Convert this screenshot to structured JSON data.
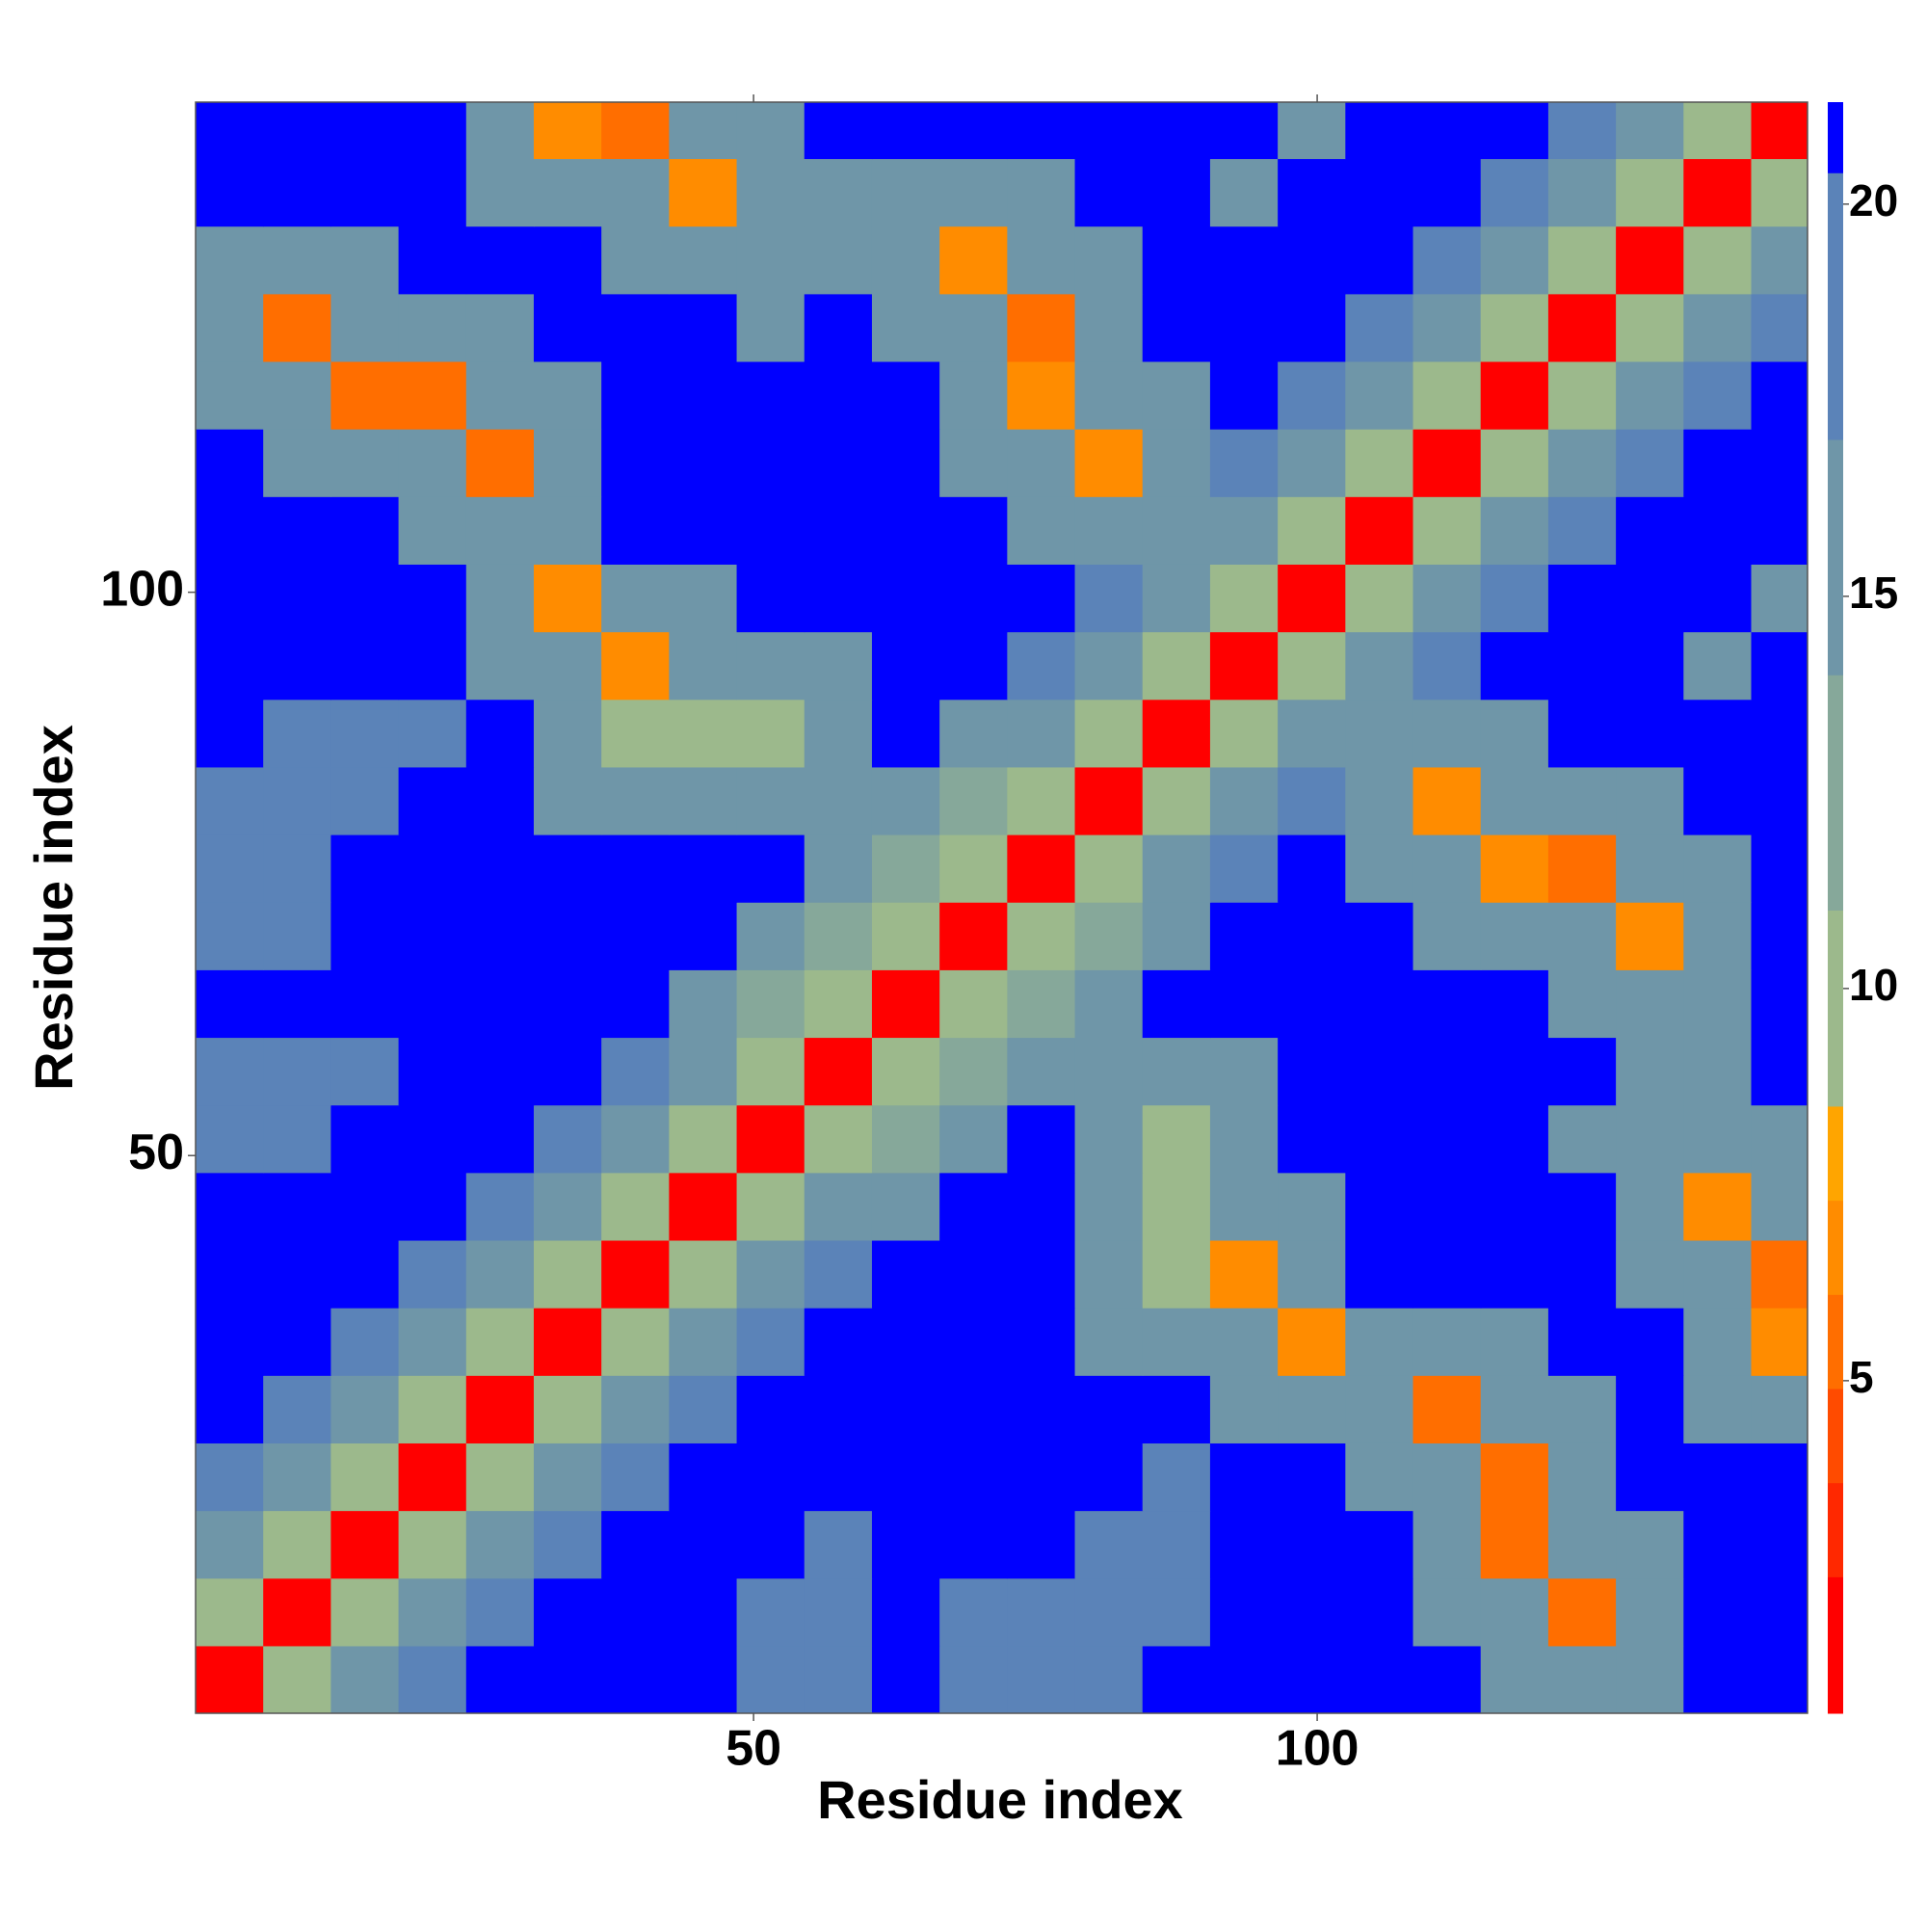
{
  "chart_data": {
    "type": "heatmap",
    "xlabel": "Residue index",
    "ylabel": "Residue index",
    "bins": [
      0.5,
      6.5,
      12.5,
      18.5,
      24.5,
      30.5,
      36.5,
      42.5,
      48.5,
      54.5,
      60.5,
      66.5,
      72.5,
      78.5,
      84.5,
      90.5,
      96.5,
      102.5,
      108.5,
      114.5,
      120.5,
      126.5,
      132.5,
      138.5,
      144.5
    ],
    "xlim": [
      0.5,
      143.5
    ],
    "ylim": [
      0.5,
      143.5
    ],
    "xticks": [
      50,
      100
    ],
    "yticks": [
      50,
      100
    ],
    "values": [
      [
        2,
        9,
        14,
        19,
        21,
        21,
        21,
        21,
        17,
        17,
        21,
        17,
        17,
        17,
        21,
        21,
        21,
        21,
        21,
        14,
        14,
        14,
        21,
        21
      ],
      [
        9,
        2,
        9,
        14,
        19,
        21,
        21,
        21,
        17,
        17,
        21,
        17,
        17,
        17,
        17,
        21,
        21,
        21,
        14,
        14,
        6,
        14,
        21,
        21
      ],
      [
        14,
        9,
        2,
        9,
        14,
        19,
        21,
        21,
        21,
        17,
        21,
        21,
        21,
        17,
        17,
        21,
        21,
        21,
        14,
        6,
        14,
        14,
        21,
        21
      ],
      [
        19,
        14,
        9,
        2,
        9,
        14,
        19,
        21,
        21,
        21,
        21,
        21,
        21,
        21,
        17,
        21,
        21,
        14,
        14,
        6,
        14,
        21,
        21,
        21
      ],
      [
        21,
        19,
        14,
        9,
        2,
        9,
        14,
        19,
        21,
        21,
        21,
        21,
        21,
        21,
        21,
        14,
        14,
        14,
        6,
        14,
        14,
        21,
        14,
        14
      ],
      [
        21,
        21,
        19,
        14,
        9,
        2,
        9,
        14,
        19,
        21,
        21,
        21,
        21,
        14,
        14,
        14,
        7,
        14,
        14,
        14,
        21,
        21,
        14,
        7
      ],
      [
        21,
        21,
        21,
        19,
        14,
        9,
        2,
        9,
        14,
        19,
        21,
        21,
        21,
        14,
        9,
        7,
        14,
        21,
        21,
        21,
        21,
        14,
        14,
        6
      ],
      [
        21,
        21,
        21,
        21,
        19,
        14,
        9,
        2,
        9,
        14,
        15,
        21,
        21,
        14,
        9,
        14,
        14,
        21,
        21,
        21,
        21,
        14,
        7,
        14
      ],
      [
        17,
        17,
        21,
        21,
        21,
        19,
        14,
        9,
        2,
        9,
        11,
        15,
        21,
        14,
        10,
        14,
        21,
        21,
        21,
        21,
        16,
        14,
        14,
        14
      ],
      [
        17,
        17,
        17,
        21,
        21,
        21,
        19,
        14,
        9,
        2,
        9,
        11,
        15,
        14,
        14,
        14,
        21,
        21,
        21,
        21,
        21,
        16,
        16,
        21
      ],
      [
        21,
        21,
        21,
        21,
        21,
        21,
        21,
        15,
        11,
        9,
        2,
        9,
        11,
        15,
        21,
        21,
        21,
        21,
        21,
        21,
        14,
        14,
        14,
        21
      ],
      [
        17,
        17,
        21,
        21,
        21,
        21,
        21,
        21,
        15,
        11,
        9,
        2,
        9,
        11,
        15,
        21,
        21,
        21,
        14,
        14,
        14,
        7,
        14,
        21
      ],
      [
        17,
        17,
        21,
        21,
        21,
        21,
        21,
        21,
        21,
        15,
        11,
        9,
        2,
        9,
        14,
        19,
        21,
        14,
        14,
        7,
        6,
        14,
        14,
        21
      ],
      [
        17,
        17,
        17,
        21,
        21,
        14,
        14,
        14,
        14,
        14,
        15,
        11,
        9,
        2,
        9,
        14,
        19,
        14,
        7,
        14,
        14,
        14,
        21,
        21
      ],
      [
        21,
        17,
        17,
        17,
        21,
        14,
        9,
        9,
        10,
        14,
        21,
        15,
        14,
        9,
        2,
        9,
        14,
        14,
        14,
        14,
        21,
        21,
        21,
        21
      ],
      [
        21,
        21,
        21,
        21,
        14,
        14,
        7,
        14,
        14,
        14,
        21,
        21,
        19,
        14,
        9,
        2,
        9,
        14,
        19,
        21,
        21,
        21,
        16,
        21
      ],
      [
        21,
        21,
        21,
        21,
        14,
        7,
        14,
        14,
        21,
        21,
        21,
        21,
        21,
        19,
        14,
        9,
        2,
        9,
        14,
        19,
        21,
        21,
        21,
        16
      ],
      [
        21,
        21,
        21,
        14,
        14,
        14,
        21,
        21,
        21,
        21,
        21,
        21,
        14,
        14,
        14,
        14,
        9,
        2,
        9,
        14,
        19,
        21,
        21,
        21
      ],
      [
        21,
        14,
        14,
        14,
        6,
        14,
        21,
        21,
        21,
        21,
        21,
        14,
        14,
        7,
        14,
        19,
        14,
        9,
        2,
        9,
        14,
        19,
        21,
        21
      ],
      [
        14,
        14,
        6,
        6,
        14,
        14,
        21,
        21,
        21,
        21,
        21,
        14,
        7,
        14,
        14,
        21,
        19,
        14,
        9,
        2,
        9,
        14,
        19,
        21
      ],
      [
        14,
        6,
        14,
        14,
        14,
        21,
        21,
        21,
        16,
        21,
        14,
        14,
        6,
        14,
        21,
        21,
        21,
        19,
        14,
        9,
        2,
        9,
        14,
        19
      ],
      [
        14,
        14,
        14,
        21,
        21,
        21,
        14,
        14,
        14,
        16,
        14,
        7,
        14,
        14,
        21,
        21,
        21,
        21,
        19,
        14,
        9,
        2,
        9,
        14
      ],
      [
        21,
        21,
        21,
        21,
        14,
        14,
        14,
        7,
        14,
        16,
        14,
        14,
        14,
        21,
        21,
        16,
        21,
        21,
        21,
        19,
        14,
        9,
        2,
        9
      ],
      [
        21,
        21,
        21,
        21,
        14,
        7,
        6,
        14,
        14,
        21,
        21,
        21,
        21,
        21,
        21,
        21,
        16,
        21,
        21,
        21,
        19,
        14,
        9,
        2
      ]
    ],
    "colorbar": {
      "bounds": [
        0.76,
        2.5,
        3.7,
        4.9,
        6.1,
        7.3,
        8.5,
        11,
        14,
        17,
        20.4,
        21.3
      ],
      "colors": [
        "#ff0000",
        "#ff2800",
        "#ff4b00",
        "#ff6e00",
        "#ff8c00",
        "#ffa500",
        "#9cb98c",
        "#86a89a",
        "#6f96a8",
        "#5b83b8",
        "#0000ff"
      ],
      "ylim": [
        0.76,
        21.3
      ],
      "yticks": [
        5,
        10,
        15,
        20
      ]
    }
  }
}
